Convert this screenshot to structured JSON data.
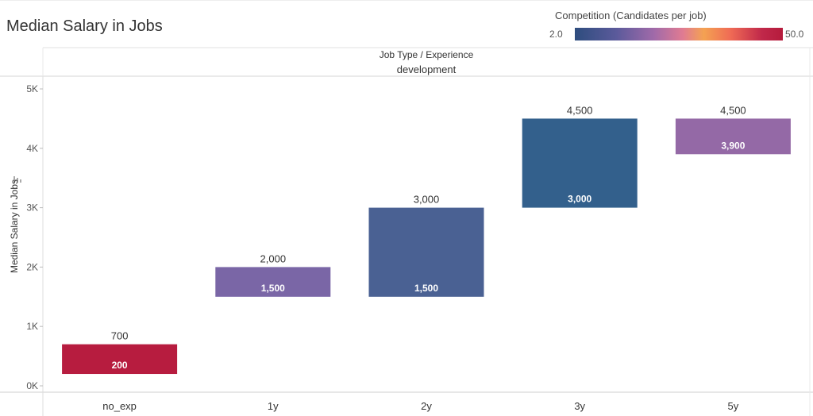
{
  "title": "Median Salary in Jobs",
  "legend": {
    "title": "Competition (Candidates per job)",
    "min_label": "2.0",
    "max_label": "50.0"
  },
  "chart_data": {
    "type": "bar",
    "subtype": "floating-range",
    "column_header_title": "Job Type / Experience",
    "column_header_value": "development",
    "ylabel": "Median Salary in Jobs",
    "ylim": [
      0,
      5000
    ],
    "yticks": [
      {
        "value": 0,
        "label": "0K"
      },
      {
        "value": 1000,
        "label": "1K"
      },
      {
        "value": 2000,
        "label": "2K"
      },
      {
        "value": 3000,
        "label": "3K"
      },
      {
        "value": 4000,
        "label": "4K"
      },
      {
        "value": 5000,
        "label": "5K"
      }
    ],
    "categories": [
      "no_exp",
      "1y",
      "2y",
      "3y",
      "5y"
    ],
    "low": [
      200,
      1500,
      1500,
      3000,
      3900
    ],
    "high": [
      700,
      2000,
      3000,
      4500,
      4500
    ],
    "low_labels": [
      "200",
      "1,500",
      "1,500",
      "3,000",
      "3,900"
    ],
    "high_labels": [
      "700",
      "2,000",
      "3,000",
      "4,500",
      "4,500"
    ],
    "colors": [
      "#b71c3f",
      "#7a66a6",
      "#4a6193",
      "#33608c",
      "#9469a6"
    ],
    "grid": false
  }
}
